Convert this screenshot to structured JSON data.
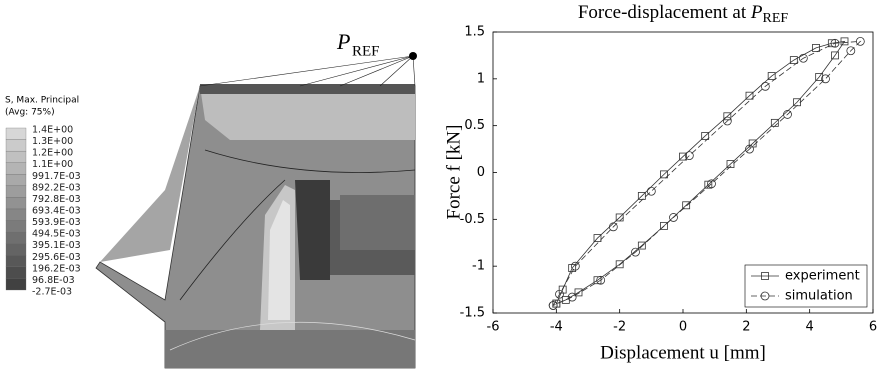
{
  "contour": {
    "legend_title": "S, Max. Principal",
    "legend_subtitle": "(Avg: 75%)",
    "levels": [
      "1.4E+00",
      "1.3E+00",
      "1.2E+00",
      "1.1E+00",
      "991.7E-03",
      "892.2E-03",
      "792.8E-03",
      "693.4E-03",
      "593.9E-03",
      "494.5E-03",
      "395.1E-03",
      "295.6E-03",
      "196.2E-03",
      "96.8E-03",
      "-2.7E-03"
    ],
    "point_symbol": "P",
    "point_subscript": "REF"
  },
  "chart_data": {
    "type": "line",
    "title": "Force-displacement at",
    "title_symbol": "P",
    "title_subscript": "REF",
    "x_label": "Displacement u [mm]",
    "y_label": "Force f [kN]",
    "xlim": [
      -6,
      6
    ],
    "xticks": [
      -6,
      -4,
      -2,
      0,
      2,
      4,
      6
    ],
    "ylim": [
      -1.5,
      1.5
    ],
    "yticks": [
      -1.5,
      -1,
      -0.5,
      0,
      0.5,
      1,
      1.5
    ],
    "legend": "lower right",
    "series": [
      {
        "name": "experiment",
        "color": "#333333",
        "marker": "square",
        "dashed": false,
        "x": [
          -4,
          -3.8,
          -3.5,
          -2.7,
          -2,
          -1.3,
          -0.6,
          0,
          0.7,
          1.4,
          2.1,
          2.8,
          3.5,
          4.2,
          4.7,
          5.1,
          4.8,
          4.3,
          3.6,
          2.9,
          2.2,
          1.5,
          0.8,
          0.1,
          -0.6,
          -1.3,
          -2.0,
          -2.7,
          -3.3,
          -3.7,
          -4
        ],
        "values": [
          -1.4,
          -1.25,
          -1.02,
          -0.7,
          -0.48,
          -0.25,
          -0.02,
          0.17,
          0.39,
          0.6,
          0.82,
          1.03,
          1.2,
          1.33,
          1.38,
          1.4,
          1.25,
          1.02,
          0.75,
          0.53,
          0.31,
          0.09,
          -0.13,
          -0.35,
          -0.57,
          -0.78,
          -0.98,
          -1.15,
          -1.28,
          -1.36,
          -1.4
        ]
      },
      {
        "name": "simulation",
        "color": "#333333",
        "marker": "circle",
        "dashed": true,
        "x": [
          -4.1,
          -3.9,
          -3.4,
          -2.2,
          -1.0,
          0.2,
          1.4,
          2.6,
          3.8,
          4.8,
          5.6,
          5.3,
          4.5,
          3.3,
          2.1,
          0.9,
          -0.3,
          -1.5,
          -2.6,
          -3.5,
          -4.1
        ],
        "values": [
          -1.42,
          -1.3,
          -1.0,
          -0.58,
          -0.2,
          0.18,
          0.55,
          0.92,
          1.22,
          1.38,
          1.4,
          1.3,
          1.0,
          0.62,
          0.25,
          -0.12,
          -0.48,
          -0.85,
          -1.15,
          -1.33,
          -1.42
        ]
      }
    ]
  }
}
